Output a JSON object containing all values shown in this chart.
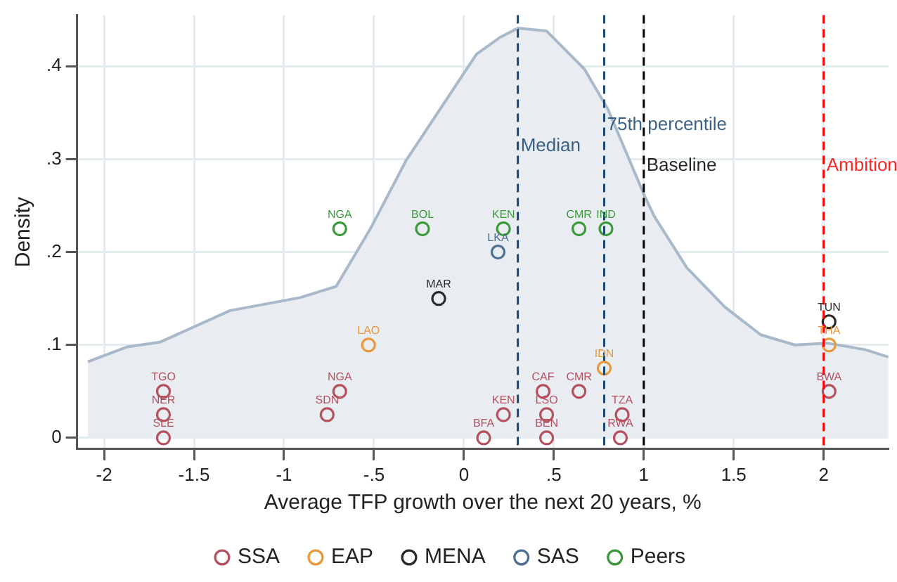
{
  "chart_data": {
    "type": "scatter",
    "xlabel": "Average TFP growth over the next 20 years, %",
    "ylabel": "Density",
    "xlim": [
      -2.15,
      2.36
    ],
    "ylim": [
      -0.012,
      0.455
    ],
    "xticks": [
      {
        "value": -2,
        "label": "-2"
      },
      {
        "value": -1.5,
        "label": "-1.5"
      },
      {
        "value": -1,
        "label": "-1"
      },
      {
        "value": -0.5,
        "label": "-.5"
      },
      {
        "value": 0,
        "label": "0"
      },
      {
        "value": 0.5,
        "label": ".5"
      },
      {
        "value": 1,
        "label": "1"
      },
      {
        "value": 1.5,
        "label": "1.5"
      },
      {
        "value": 2,
        "label": "2"
      }
    ],
    "yticks": [
      {
        "value": 0,
        "label": "0"
      },
      {
        "value": 0.1,
        "label": ".1"
      },
      {
        "value": 0.2,
        "label": ".2"
      },
      {
        "value": 0.3,
        "label": ".3"
      },
      {
        "value": 0.4,
        "label": ".4"
      }
    ],
    "grid": true,
    "legend": "bottom",
    "marker": "circle",
    "ref_lines": [
      {
        "axis": "x",
        "value": 0.3,
        "label": "Median",
        "color": "#1a476f",
        "line_style": "dashed"
      },
      {
        "axis": "x",
        "value": 0.78,
        "label": "75th percentile",
        "color": "#1a476f",
        "line_style": "dashed"
      },
      {
        "axis": "x",
        "value": 1,
        "label": "Baseline",
        "color": "#000000",
        "line_style": "dashed"
      },
      {
        "axis": "x",
        "value": 2,
        "label": "Ambition",
        "color": "#ff0000",
        "line_style": "dashed"
      }
    ],
    "series": [
      {
        "type": "area",
        "marker": "none",
        "color": "#a9b9c9",
        "x": [
          -2.09,
          -1.87,
          -1.69,
          -1.3,
          -0.91,
          -0.71,
          -0.52,
          -0.32,
          0.07,
          0.2,
          0.3,
          0.46,
          0.67,
          0.8,
          1.01,
          1.06,
          1.24,
          1.45,
          1.65,
          1.84,
          2.02,
          2.23,
          2.36
        ],
        "values": [
          0.082,
          0.098,
          0.103,
          0.137,
          0.151,
          0.163,
          0.225,
          0.299,
          0.413,
          0.431,
          0.441,
          0.438,
          0.397,
          0.354,
          0.258,
          0.238,
          0.183,
          0.141,
          0.111,
          0.1,
          0.102,
          0.095,
          0.087
        ]
      },
      {
        "name": "SSA",
        "color": "#b5515f",
        "x": [
          -1.67,
          -1.67,
          -1.67,
          -0.69,
          -0.76,
          0.11,
          0.22,
          0.44,
          0.46,
          0.46,
          0.64,
          0.88,
          0.87,
          2.03
        ],
        "values": [
          0.05,
          0.025,
          0,
          0.05,
          0.025,
          0,
          0.025,
          0.05,
          0.025,
          0,
          0.05,
          0.025,
          0,
          0.05
        ],
        "value_labels": [
          "TGO",
          "NER",
          "SLE",
          "NGA",
          "SDN",
          "BFA",
          "KEN",
          "CAF",
          "LSO",
          "BEN",
          "CMR",
          "TZA",
          "RWA",
          "BWA"
        ]
      },
      {
        "name": "EAP",
        "color": "#e8983a",
        "x": [
          -0.53,
          0.78,
          2.03
        ],
        "values": [
          0.1,
          0.075,
          0.1
        ],
        "value_labels": [
          "LAO",
          "IDN",
          "THA"
        ]
      },
      {
        "name": "MENA",
        "color": "#2a2a2a",
        "x": [
          -0.14,
          2.03
        ],
        "values": [
          0.15,
          0.125
        ],
        "value_labels": [
          "MAR",
          "TUN"
        ]
      },
      {
        "name": "SAS",
        "color": "#4e6f94",
        "x": [
          0.19
        ],
        "values": [
          0.2
        ],
        "value_labels": [
          "LKA"
        ]
      },
      {
        "name": "Peers",
        "color": "#3c9a3c",
        "x": [
          -0.69,
          -0.23,
          0.22,
          0.64,
          0.79
        ],
        "values": [
          0.225,
          0.225,
          0.225,
          0.225,
          0.225
        ],
        "value_labels": [
          "NGA",
          "BOL",
          "KEN",
          "CMR",
          "IND"
        ]
      }
    ]
  }
}
